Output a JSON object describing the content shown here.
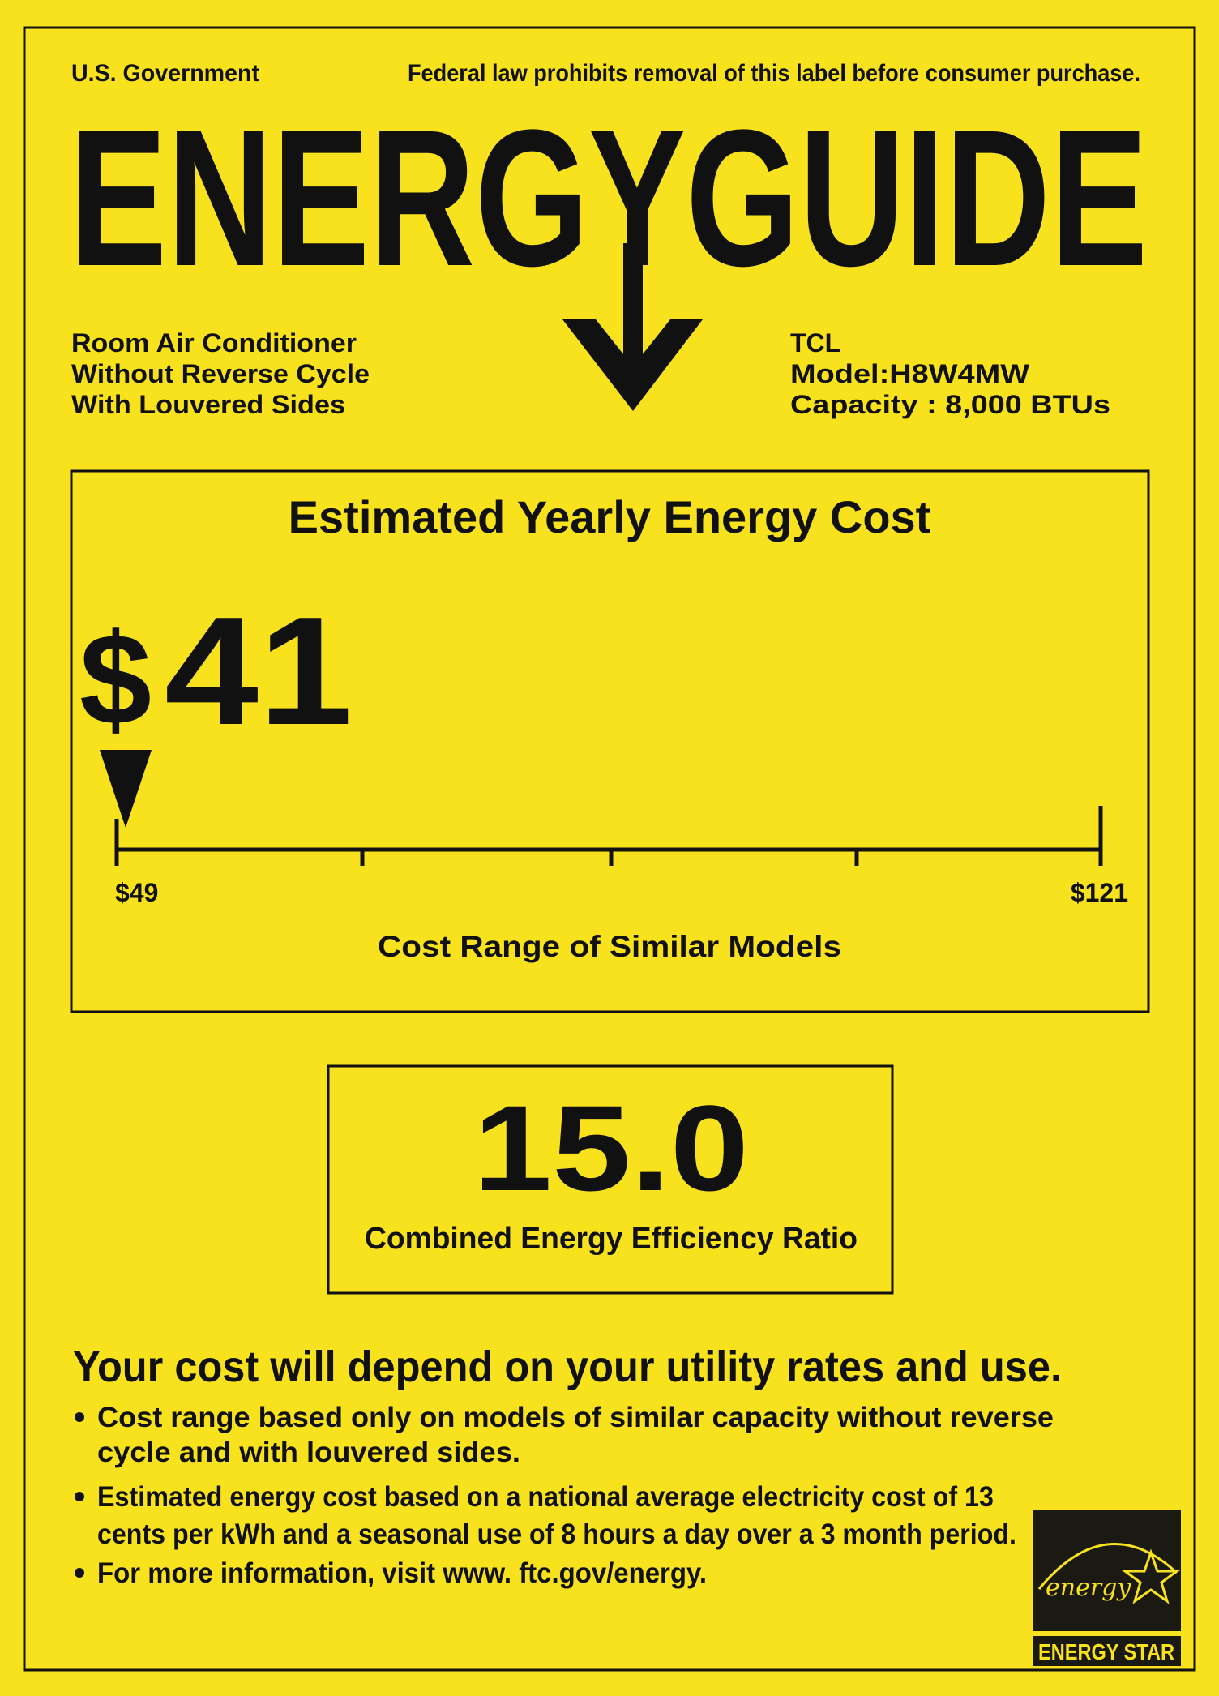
{
  "colors": {
    "background": "#f8e11d",
    "ink": "#111111"
  },
  "header": {
    "issuer": "U.S. Government",
    "notice": "Federal law prohibits removal of this label before consumer purchase.",
    "title": "ENERGYGUIDE"
  },
  "product": {
    "type_lines": [
      "Room Air Conditioner",
      "Without Reverse Cycle",
      "With Louvered Sides"
    ],
    "brand": "TCL",
    "model": "Model:H8W4MW",
    "capacity": "Capacity : 8,000 BTUs"
  },
  "cost": {
    "title": "Estimated Yearly Energy Cost",
    "currency": "$",
    "value": "41",
    "range_min_label": "$49",
    "range_max_label": "$121",
    "range_caption": "Cost Range of Similar Models"
  },
  "efficiency": {
    "value": "15.0",
    "label": "Combined Energy Efficiency Ratio"
  },
  "footer": {
    "heading": "Your cost will depend on your utility rates and use.",
    "bullets": [
      [
        "Cost range based only on models of similar capacity without reverse",
        "cycle and with louvered sides."
      ],
      [
        "Estimated energy cost based on a national average electricity cost of 13",
        "cents per kWh and a seasonal use of 8 hours a day over a 3 month period."
      ],
      [
        "For more information, visit www. ftc.gov/energy."
      ]
    ]
  },
  "energy_star": {
    "script": "energy",
    "label": "ENERGY STAR",
    "icon": "energy-star-logo"
  }
}
